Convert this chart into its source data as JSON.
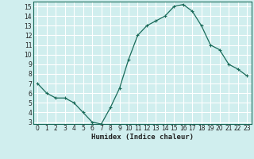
{
  "x": [
    0,
    1,
    2,
    3,
    4,
    5,
    6,
    7,
    8,
    9,
    10,
    11,
    12,
    13,
    14,
    15,
    16,
    17,
    18,
    19,
    20,
    21,
    22,
    23
  ],
  "y": [
    7,
    6,
    5.5,
    5.5,
    5,
    4,
    3,
    2.8,
    4.5,
    6.5,
    9.5,
    12,
    13,
    13.5,
    14,
    15,
    15.2,
    14.5,
    13,
    11,
    10.5,
    9,
    8.5,
    7.8
  ],
  "line_color": "#1a6b5a",
  "marker": "+",
  "marker_size": 3,
  "marker_lw": 0.8,
  "bg_color": "#d0eeee",
  "grid_color": "#ffffff",
  "xlabel": "Humidex (Indice chaleur)",
  "ylim": [
    2.8,
    15.5
  ],
  "xlim": [
    -0.5,
    23.5
  ],
  "yticks": [
    3,
    4,
    5,
    6,
    7,
    8,
    9,
    10,
    11,
    12,
    13,
    14,
    15
  ],
  "xticks": [
    0,
    1,
    2,
    3,
    4,
    5,
    6,
    7,
    8,
    9,
    10,
    11,
    12,
    13,
    14,
    15,
    16,
    17,
    18,
    19,
    20,
    21,
    22,
    23
  ],
  "tick_fontsize": 5.5,
  "label_fontsize": 6.5
}
